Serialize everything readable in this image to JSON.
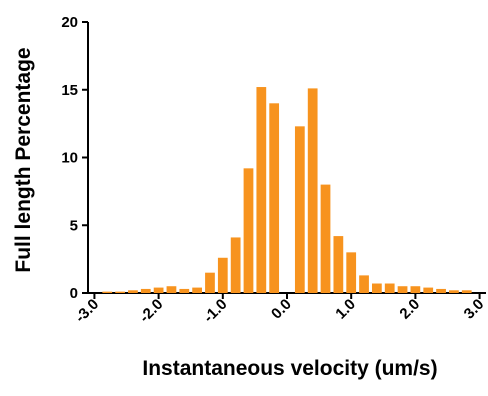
{
  "chart_data": {
    "type": "histogram",
    "xlabel": "Instantaneous velocity (um/s)",
    "ylabel": "Full length Percentage",
    "bins": [
      -2.9,
      -2.7,
      -2.5,
      -2.3,
      -2.1,
      -1.9,
      -1.7,
      -1.5,
      -1.3,
      -1.1,
      -0.9,
      -0.7,
      -0.5,
      -0.3,
      -0.1,
      0.1,
      0.3,
      0.5,
      0.7,
      0.9,
      1.1,
      1.3,
      1.5,
      1.7,
      1.9,
      2.1,
      2.3,
      2.5,
      2.7,
      2.9
    ],
    "values": [
      0.1,
      0.1,
      0.2,
      0.3,
      0.4,
      0.5,
      0.3,
      0.4,
      1.5,
      2.6,
      4.1,
      9.2,
      15.2,
      14.0,
      0,
      12.3,
      15.1,
      8.0,
      4.2,
      3.0,
      1.3,
      0.7,
      0.7,
      0.5,
      0.5,
      0.4,
      0.3,
      0.2,
      0.2
    ],
    "color": "#f7931e",
    "xlim": [
      -3.1,
      3.1
    ],
    "xticks": [
      {
        "value": -3,
        "label": "-3.0"
      },
      {
        "value": -2,
        "label": "-2.0"
      },
      {
        "value": -1,
        "label": "-1.0"
      },
      {
        "value": 0,
        "label": "0.0"
      },
      {
        "value": 1,
        "label": "1.0"
      },
      {
        "value": 2,
        "label": "2.0"
      },
      {
        "value": 3,
        "label": "3.0"
      }
    ],
    "ylim": [
      0,
      20
    ],
    "yticks": [
      0,
      5,
      10,
      15,
      20
    ]
  }
}
